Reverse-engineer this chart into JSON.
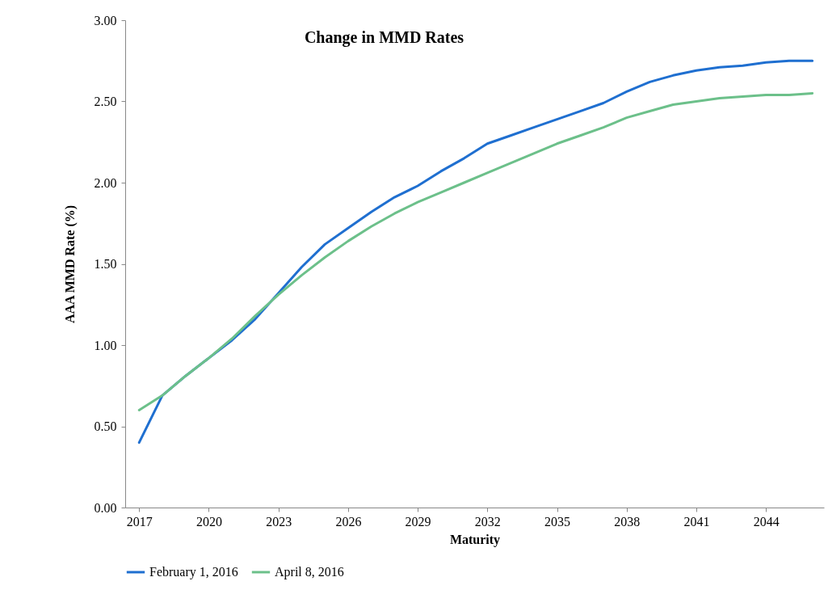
{
  "chart_data": {
    "type": "line",
    "title": "Change in MMD Rates",
    "xlabel": "Maturity",
    "ylabel": "AAA MMD Rate (%)",
    "x": [
      2017,
      2018,
      2019,
      2020,
      2021,
      2022,
      2023,
      2024,
      2025,
      2026,
      2027,
      2028,
      2029,
      2030,
      2031,
      2032,
      2033,
      2034,
      2035,
      2036,
      2037,
      2038,
      2039,
      2040,
      2041,
      2042,
      2043,
      2044,
      2045,
      2046
    ],
    "xlim": [
      2016.4,
      2046.5
    ],
    "xticks": [
      2017,
      2020,
      2023,
      2026,
      2029,
      2032,
      2035,
      2038,
      2041,
      2044
    ],
    "ylim": [
      0,
      3
    ],
    "yticks": [
      {
        "value": 0,
        "label": "0.00"
      },
      {
        "value": 0.5,
        "label": "0.50"
      },
      {
        "value": 1,
        "label": "1.00"
      },
      {
        "value": 1.5,
        "label": "1.50"
      },
      {
        "value": 2,
        "label": "2.00"
      },
      {
        "value": 2.5,
        "label": "2.50"
      },
      {
        "value": 3,
        "label": "3.00"
      }
    ],
    "series": [
      {
        "name": "February 1, 2016",
        "color": "#1f6fd0",
        "values": [
          0.4,
          0.69,
          0.81,
          0.92,
          1.03,
          1.16,
          1.32,
          1.48,
          1.62,
          1.72,
          1.82,
          1.91,
          1.98,
          2.07,
          2.15,
          2.24,
          2.29,
          2.34,
          2.39,
          2.44,
          2.49,
          2.56,
          2.62,
          2.66,
          2.69,
          2.71,
          2.72,
          2.74,
          2.75,
          2.75
        ]
      },
      {
        "name": "April 8, 2016",
        "color": "#6cc08a",
        "values": [
          0.6,
          0.69,
          0.81,
          0.92,
          1.04,
          1.18,
          1.31,
          1.43,
          1.54,
          1.64,
          1.73,
          1.81,
          1.88,
          1.94,
          2.0,
          2.06,
          2.12,
          2.18,
          2.24,
          2.29,
          2.34,
          2.4,
          2.44,
          2.48,
          2.5,
          2.52,
          2.53,
          2.54,
          2.54,
          2.55
        ]
      }
    ],
    "legend": "bottom"
  }
}
